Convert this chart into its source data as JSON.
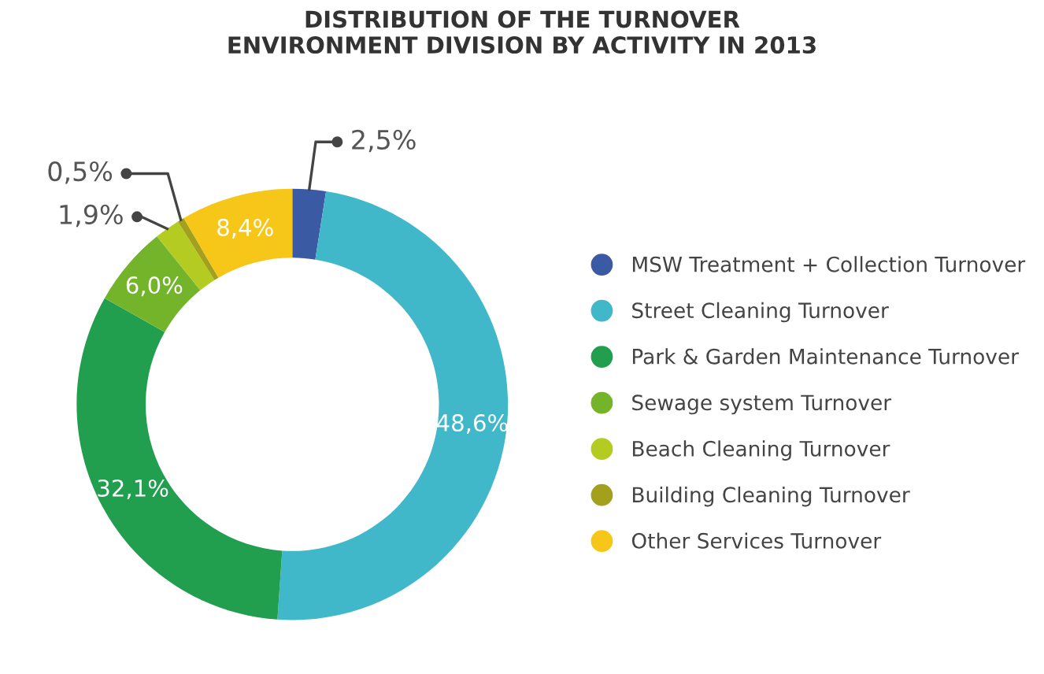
{
  "chart_data": {
    "type": "donut",
    "title": "DISTRIBUTION OF THE TURNOVER\nENVIRONMENT DIVISION BY ACTIVITY IN 2013",
    "categories": [
      "MSW Treatment + Collection Turnover",
      "Street Cleaning Turnover",
      "Park & Garden Maintenance Turnover",
      "Sewage system Turnover",
      "Beach Cleaning Turnover",
      "Building Cleaning Turnover",
      "Other Services Turnover"
    ],
    "values": [
      2.5,
      48.6,
      32.1,
      6.0,
      1.9,
      0.5,
      8.4
    ],
    "value_labels": [
      "2,5%",
      "48,6%",
      "32,1%",
      "6,0%",
      "1,9%",
      "0,5%",
      "8,4%"
    ],
    "colors": [
      "#3a5aa3",
      "#41b8c9",
      "#229e4f",
      "#74b42a",
      "#b4cc22",
      "#a3a01e",
      "#f6c619"
    ],
    "legend": "right"
  }
}
